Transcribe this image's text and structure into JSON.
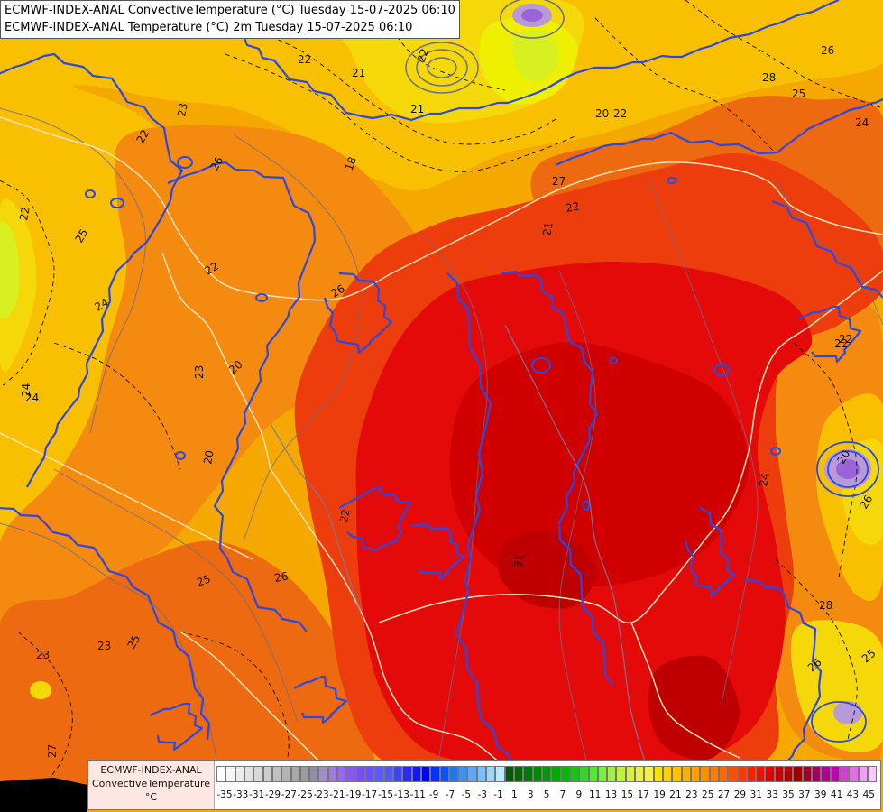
{
  "header": {
    "line1": "ECMWF-INDEX-ANAL ConvectiveTemperature (°C) Tuesday 15-07-2025 06:10",
    "line2": "ECMWF-INDEX-ANAL Temperature (°C) 2m Tuesday 15-07-2025 06:10"
  },
  "legend": {
    "model": "ECMWF-INDEX-ANAL",
    "variable": "ConvectiveTemperature",
    "unit": "°C",
    "ticks": [
      "-35",
      "-33",
      "-31",
      "-29",
      "-27",
      "-25",
      "-23",
      "-21",
      "-19",
      "-17",
      "-15",
      "-13",
      "-11",
      "-9",
      "-7",
      "-5",
      "-3",
      "-1",
      "1",
      "3",
      "5",
      "7",
      "9",
      "11",
      "13",
      "15",
      "17",
      "19",
      "21",
      "23",
      "25",
      "27",
      "29",
      "31",
      "33",
      "35",
      "37",
      "39",
      "41",
      "43",
      "45"
    ],
    "colors": [
      "#ffffff",
      "#f6f6f6",
      "#ececec",
      "#e2e2e2",
      "#d8d8d8",
      "#cccccc",
      "#c0c0c0",
      "#b4b4b4",
      "#a8a8a8",
      "#9c9c9c",
      "#8f8fa6",
      "#a08fc2",
      "#a07ce0",
      "#9a66ff",
      "#8a55ff",
      "#7a4cff",
      "#6a50ff",
      "#5a5aff",
      "#4a5aff",
      "#3a44ff",
      "#2a2aff",
      "#1515ff",
      "#0000ff",
      "#0033ff",
      "#0055ff",
      "#1a75ff",
      "#3a90ff",
      "#5aa8ff",
      "#7ac0ff",
      "#9ad8ff",
      "#bae8ff",
      "#005a00",
      "#006a00",
      "#007a00",
      "#008a00",
      "#009a00",
      "#00aa00",
      "#00ba00",
      "#10ca10",
      "#30da20",
      "#50ea30",
      "#78f040",
      "#a0f040",
      "#c0f040",
      "#d8f040",
      "#ecf040",
      "#f8f040",
      "#ffe000",
      "#ffd000",
      "#ffc000",
      "#ffb000",
      "#ff9f00",
      "#ff8f00",
      "#ff7e00",
      "#ff6800",
      "#ff5000",
      "#ff3800",
      "#f82000",
      "#ee1000",
      "#e00000",
      "#cc0000",
      "#b80000",
      "#a00000",
      "#a00030",
      "#a00060",
      "#b00090",
      "#c000b0",
      "#d040d0",
      "#e070e0",
      "#f0a0f0",
      "#fac8fa"
    ],
    "palette_note": ""
  },
  "map": {
    "field_colors": {
      "cool_yellow": "#f5d80a",
      "yellow_orange": "#f8c000",
      "light_orange": "#f5a800",
      "orange": "#f48a10",
      "dark_orange": "#ee6a10",
      "red_orange": "#ee3d0c",
      "red": "#e50a0a",
      "deep_red": "#d00000",
      "core_red": "#bf0000",
      "green_yellow": "#d8f020",
      "cyan_green": "#c6f000",
      "lavender": "#b89ad8",
      "violet": "#9a64d8"
    },
    "line_colors": {
      "isotherm_blue": "#2d48e0",
      "dashed_black": "#111111",
      "grey_contour": "#6b6b8a",
      "border": "#f0e2b8",
      "river": "#7a7aa0"
    },
    "contour_labels": [
      {
        "text": "22"
      },
      {
        "text": "21"
      },
      {
        "text": "21"
      },
      {
        "text": "22"
      },
      {
        "text": "23"
      },
      {
        "text": "22"
      },
      {
        "text": "18"
      },
      {
        "text": "20"
      },
      {
        "text": "22"
      },
      {
        "text": "25"
      },
      {
        "text": "24"
      },
      {
        "text": "28"
      },
      {
        "text": "26"
      },
      {
        "text": "22"
      },
      {
        "text": "27"
      },
      {
        "text": "22"
      },
      {
        "text": "21"
      },
      {
        "text": "22"
      },
      {
        "text": "25"
      },
      {
        "text": "26"
      },
      {
        "text": "26"
      },
      {
        "text": "24"
      },
      {
        "text": "22"
      },
      {
        "text": "23"
      },
      {
        "text": "20"
      },
      {
        "text": "24"
      },
      {
        "text": "20"
      },
      {
        "text": "22"
      },
      {
        "text": "25"
      },
      {
        "text": "26"
      },
      {
        "text": "25"
      },
      {
        "text": "27"
      },
      {
        "text": "28"
      },
      {
        "text": "24"
      },
      {
        "text": "26"
      },
      {
        "text": "22"
      },
      {
        "text": "20"
      },
      {
        "text": "24"
      },
      {
        "text": "23"
      },
      {
        "text": "26"
      },
      {
        "text": "31"
      },
      {
        "text": "23"
      },
      {
        "text": "25"
      }
    ]
  }
}
